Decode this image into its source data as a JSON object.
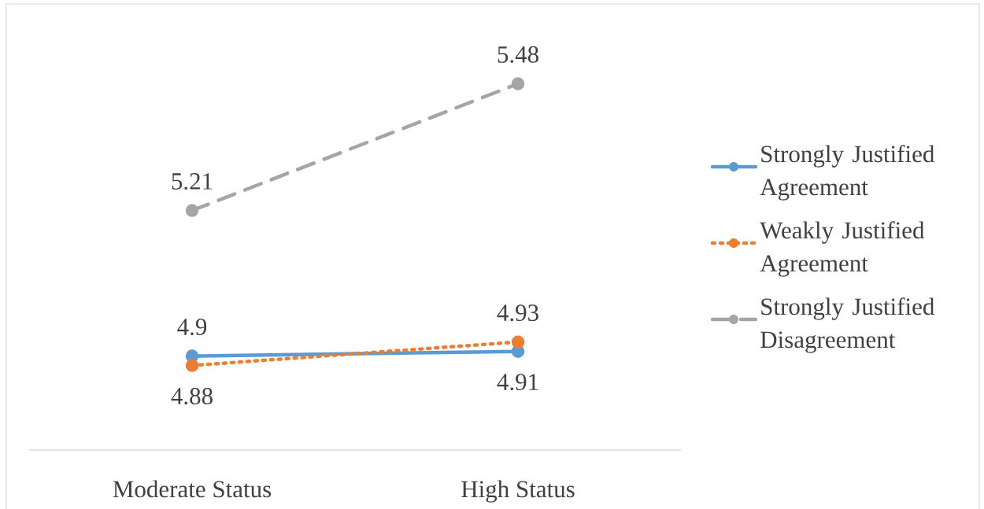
{
  "chart_data": {
    "type": "line",
    "categories": [
      "Moderate Status",
      "High Status"
    ],
    "series": [
      {
        "name": "Strongly Justified Agreement",
        "color": "#5b9bd5",
        "line_style": "solid",
        "values": [
          4.9,
          4.91
        ]
      },
      {
        "name": "Weakly Justified Agreement",
        "color": "#ed7d31",
        "line_style": "dotted",
        "values": [
          4.88,
          4.93
        ]
      },
      {
        "name": "Strongly Justified Disagreement",
        "color": "#a5a5a5",
        "line_style": "dashed",
        "values": [
          5.21,
          5.48
        ]
      }
    ],
    "ylim": [
      4.7,
      5.65
    ],
    "tick_labels": "x",
    "marker": "circle",
    "data_labels": true,
    "legend": "right"
  }
}
